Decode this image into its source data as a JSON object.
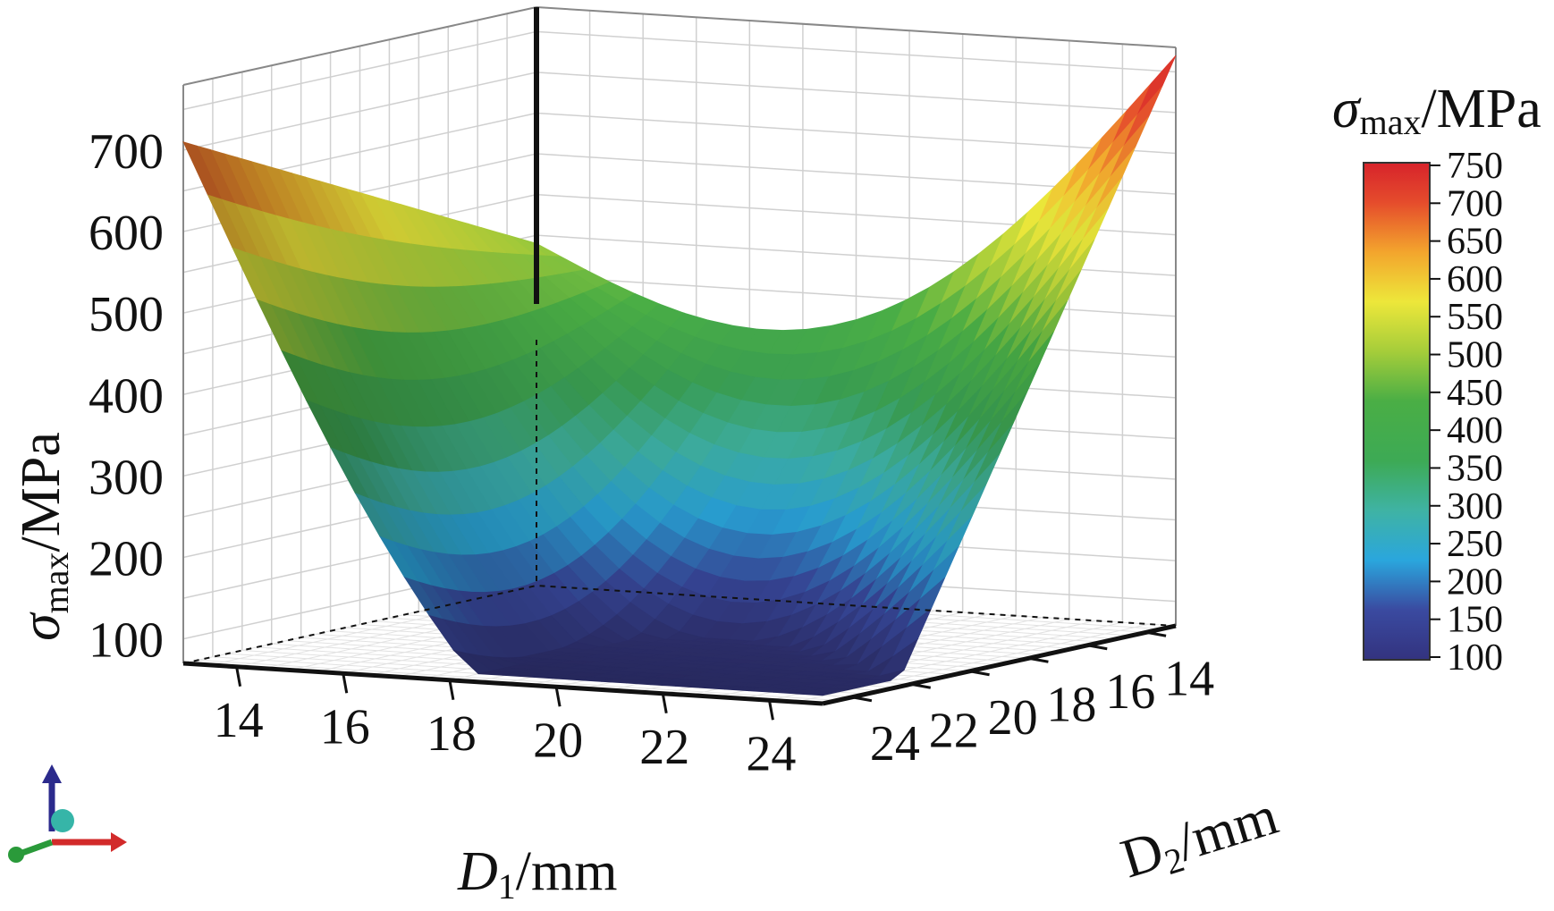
{
  "chart_data": {
    "type": "surface",
    "z_axis": {
      "label_symbol": "σ",
      "label_sub": "max",
      "label_unit": "/MPa",
      "ticks": [
        "100",
        "200",
        "300",
        "400",
        "500",
        "600",
        "700"
      ],
      "range": [
        70,
        780
      ]
    },
    "x_axis": {
      "label_symbol": "D",
      "label_sub": "1",
      "label_unit": "/mm",
      "ticks": [
        "14",
        "16",
        "18",
        "20",
        "22",
        "24"
      ],
      "range": [
        13,
        25
      ]
    },
    "y_axis": {
      "label_symbol": "D",
      "label_sub": "2",
      "label_unit": "/mm",
      "ticks": [
        "14",
        "16",
        "18",
        "20",
        "22",
        "24"
      ],
      "range": [
        13,
        25
      ]
    },
    "colorbar": {
      "title_symbol": "σ",
      "title_sub": "max",
      "title_unit": "/MPa",
      "ticks": [
        "750",
        "700",
        "650",
        "600",
        "550",
        "500",
        "450",
        "400",
        "350",
        "300",
        "250",
        "200",
        "150",
        "100"
      ],
      "range": [
        70,
        760
      ],
      "colors": [
        "#3b3f8f",
        "#3a55a5",
        "#2a9fd8",
        "#3fb3a8",
        "#41a84b",
        "#48b04a",
        "#7cbf3c",
        "#e8e83a",
        "#f1a82c",
        "#e34a2b",
        "#d9252b"
      ]
    },
    "surface_corner_values": {
      "d1_13_d2_13": 490,
      "d1_25_d2_13": 770,
      "d1_13_d2_25": 680,
      "d1_25_d2_25": 95
    },
    "grid": true
  }
}
